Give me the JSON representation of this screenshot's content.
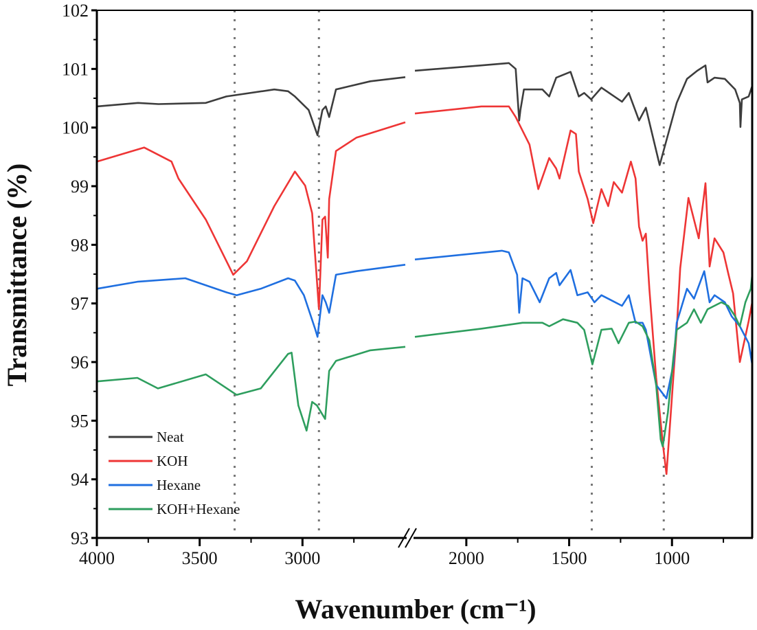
{
  "chart_data": {
    "type": "line",
    "title": "",
    "xlabel": "Wavenumber (cm⁻¹)",
    "ylabel": "Transmittance (%)",
    "xlim_segments": [
      [
        4000,
        2500
      ],
      [
        2250,
        610
      ]
    ],
    "axis_break": "between 2500 and 2250 cm-1",
    "ylim": [
      93,
      102
    ],
    "x_ticks": [
      4000,
      3500,
      3000,
      2000,
      1500,
      1000
    ],
    "x_tick_labels": [
      "4000",
      "3500",
      "3000",
      "2000",
      "1500",
      "1000"
    ],
    "y_ticks": [
      93,
      94,
      95,
      96,
      97,
      98,
      99,
      100,
      101,
      102
    ],
    "y_tick_labels": [
      "93",
      "94",
      "95",
      "96",
      "97",
      "98",
      "99",
      "100",
      "101",
      "102"
    ],
    "reference_lines": [
      3330,
      2920,
      1390,
      1040
    ],
    "grid": false,
    "legend_position": "bottom-left",
    "series": [
      {
        "name": "Neat",
        "color": "#3d3d3d",
        "points": [
          [
            4000,
            100.36
          ],
          [
            3800,
            100.42
          ],
          [
            3700,
            100.4
          ],
          [
            3470,
            100.42
          ],
          [
            3370,
            100.53
          ],
          [
            3137,
            100.65
          ],
          [
            3070,
            100.62
          ],
          [
            3037,
            100.53
          ],
          [
            2970,
            100.3
          ],
          [
            2927,
            99.87
          ],
          [
            2903,
            100.3
          ],
          [
            2887,
            100.36
          ],
          [
            2870,
            100.18
          ],
          [
            2837,
            100.65
          ],
          [
            2670,
            100.79
          ],
          [
            2500,
            100.86
          ],
          [
            2250,
            100.97
          ],
          [
            1927,
            101.06
          ],
          [
            1793,
            101.1
          ],
          [
            1760,
            101.0
          ],
          [
            1743,
            100.12
          ],
          [
            1737,
            100.3
          ],
          [
            1720,
            100.65
          ],
          [
            1630,
            100.65
          ],
          [
            1597,
            100.53
          ],
          [
            1563,
            100.85
          ],
          [
            1493,
            100.95
          ],
          [
            1453,
            100.53
          ],
          [
            1427,
            100.59
          ],
          [
            1393,
            100.48
          ],
          [
            1343,
            100.68
          ],
          [
            1243,
            100.44
          ],
          [
            1210,
            100.59
          ],
          [
            1160,
            100.12
          ],
          [
            1127,
            100.34
          ],
          [
            1060,
            99.36
          ],
          [
            977,
            100.42
          ],
          [
            927,
            100.83
          ],
          [
            877,
            100.97
          ],
          [
            837,
            101.06
          ],
          [
            827,
            100.77
          ],
          [
            793,
            100.85
          ],
          [
            743,
            100.83
          ],
          [
            693,
            100.65
          ],
          [
            670,
            100.42
          ],
          [
            667,
            100.01
          ],
          [
            660,
            100.48
          ],
          [
            627,
            100.53
          ],
          [
            610,
            100.71
          ]
        ]
      },
      {
        "name": "KOH",
        "color": "#ee3535",
        "points": [
          [
            4000,
            99.42
          ],
          [
            3770,
            99.66
          ],
          [
            3637,
            99.42
          ],
          [
            3603,
            99.13
          ],
          [
            3470,
            98.43
          ],
          [
            3337,
            97.49
          ],
          [
            3270,
            97.72
          ],
          [
            3137,
            98.66
          ],
          [
            3037,
            99.25
          ],
          [
            2987,
            99.01
          ],
          [
            2953,
            98.54
          ],
          [
            2920,
            96.9
          ],
          [
            2903,
            98.43
          ],
          [
            2890,
            98.48
          ],
          [
            2877,
            97.78
          ],
          [
            2870,
            98.78
          ],
          [
            2837,
            99.6
          ],
          [
            2737,
            99.83
          ],
          [
            2500,
            100.09
          ],
          [
            2250,
            100.24
          ],
          [
            1927,
            100.36
          ],
          [
            1793,
            100.36
          ],
          [
            1760,
            100.18
          ],
          [
            1693,
            99.71
          ],
          [
            1650,
            98.95
          ],
          [
            1597,
            99.48
          ],
          [
            1563,
            99.3
          ],
          [
            1547,
            99.13
          ],
          [
            1493,
            99.95
          ],
          [
            1467,
            99.89
          ],
          [
            1453,
            99.25
          ],
          [
            1410,
            98.78
          ],
          [
            1383,
            98.37
          ],
          [
            1343,
            98.95
          ],
          [
            1310,
            98.66
          ],
          [
            1283,
            99.07
          ],
          [
            1243,
            98.89
          ],
          [
            1200,
            99.42
          ],
          [
            1177,
            99.13
          ],
          [
            1160,
            98.31
          ],
          [
            1143,
            98.07
          ],
          [
            1127,
            98.19
          ],
          [
            1110,
            97.25
          ],
          [
            1077,
            95.73
          ],
          [
            1043,
            94.56
          ],
          [
            1027,
            94.09
          ],
          [
            1010,
            94.91
          ],
          [
            977,
            96.55
          ],
          [
            960,
            97.6
          ],
          [
            920,
            98.8
          ],
          [
            870,
            98.11
          ],
          [
            837,
            99.05
          ],
          [
            817,
            97.63
          ],
          [
            793,
            98.11
          ],
          [
            750,
            97.87
          ],
          [
            727,
            97.52
          ],
          [
            703,
            97.17
          ],
          [
            670,
            96.0
          ],
          [
            627,
            96.7
          ],
          [
            610,
            97.02
          ]
        ]
      },
      {
        "name": "Hexane",
        "color": "#1f6fe0",
        "points": [
          [
            4000,
            97.25
          ],
          [
            3803,
            97.37
          ],
          [
            3570,
            97.43
          ],
          [
            3370,
            97.19
          ],
          [
            3320,
            97.14
          ],
          [
            3203,
            97.25
          ],
          [
            3070,
            97.43
          ],
          [
            3037,
            97.39
          ],
          [
            2993,
            97.14
          ],
          [
            2937,
            96.55
          ],
          [
            2927,
            96.43
          ],
          [
            2903,
            97.14
          ],
          [
            2887,
            97.02
          ],
          [
            2870,
            96.84
          ],
          [
            2837,
            97.49
          ],
          [
            2737,
            97.55
          ],
          [
            2500,
            97.66
          ],
          [
            2250,
            97.75
          ],
          [
            1827,
            97.9
          ],
          [
            1793,
            97.87
          ],
          [
            1753,
            97.49
          ],
          [
            1743,
            96.84
          ],
          [
            1727,
            97.43
          ],
          [
            1693,
            97.37
          ],
          [
            1643,
            97.02
          ],
          [
            1597,
            97.43
          ],
          [
            1563,
            97.52
          ],
          [
            1547,
            97.31
          ],
          [
            1493,
            97.57
          ],
          [
            1460,
            97.14
          ],
          [
            1410,
            97.19
          ],
          [
            1377,
            97.02
          ],
          [
            1343,
            97.14
          ],
          [
            1243,
            96.96
          ],
          [
            1210,
            97.14
          ],
          [
            1177,
            96.67
          ],
          [
            1143,
            96.67
          ],
          [
            1127,
            96.55
          ],
          [
            1077,
            95.61
          ],
          [
            1027,
            95.38
          ],
          [
            993,
            95.96
          ],
          [
            977,
            96.67
          ],
          [
            927,
            97.25
          ],
          [
            893,
            97.08
          ],
          [
            843,
            97.55
          ],
          [
            817,
            97.02
          ],
          [
            793,
            97.14
          ],
          [
            743,
            97.02
          ],
          [
            710,
            96.78
          ],
          [
            670,
            96.61
          ],
          [
            627,
            96.32
          ],
          [
            610,
            95.96
          ]
        ]
      },
      {
        "name": "KOH+Hexane",
        "color": "#2e9e5e",
        "points": [
          [
            4000,
            95.67
          ],
          [
            3803,
            95.73
          ],
          [
            3703,
            95.55
          ],
          [
            3470,
            95.79
          ],
          [
            3320,
            95.44
          ],
          [
            3203,
            95.55
          ],
          [
            3070,
            96.14
          ],
          [
            3053,
            96.16
          ],
          [
            3020,
            95.26
          ],
          [
            2980,
            94.83
          ],
          [
            2953,
            95.32
          ],
          [
            2930,
            95.26
          ],
          [
            2890,
            95.03
          ],
          [
            2870,
            95.85
          ],
          [
            2837,
            96.02
          ],
          [
            2670,
            96.2
          ],
          [
            2500,
            96.26
          ],
          [
            2250,
            96.43
          ],
          [
            1927,
            96.57
          ],
          [
            1727,
            96.67
          ],
          [
            1630,
            96.67
          ],
          [
            1597,
            96.61
          ],
          [
            1530,
            96.73
          ],
          [
            1460,
            96.67
          ],
          [
            1427,
            96.55
          ],
          [
            1387,
            95.96
          ],
          [
            1343,
            96.55
          ],
          [
            1293,
            96.57
          ],
          [
            1260,
            96.32
          ],
          [
            1210,
            96.67
          ],
          [
            1177,
            96.69
          ],
          [
            1143,
            96.61
          ],
          [
            1110,
            96.37
          ],
          [
            1077,
            95.61
          ],
          [
            1055,
            94.68
          ],
          [
            1045,
            94.56
          ],
          [
            1020,
            95.14
          ],
          [
            993,
            96.08
          ],
          [
            977,
            96.55
          ],
          [
            927,
            96.67
          ],
          [
            893,
            96.9
          ],
          [
            860,
            96.67
          ],
          [
            827,
            96.9
          ],
          [
            760,
            97.02
          ],
          [
            727,
            96.96
          ],
          [
            693,
            96.78
          ],
          [
            670,
            96.61
          ],
          [
            643,
            97.02
          ],
          [
            617,
            97.25
          ],
          [
            610,
            97.49
          ]
        ]
      }
    ]
  }
}
